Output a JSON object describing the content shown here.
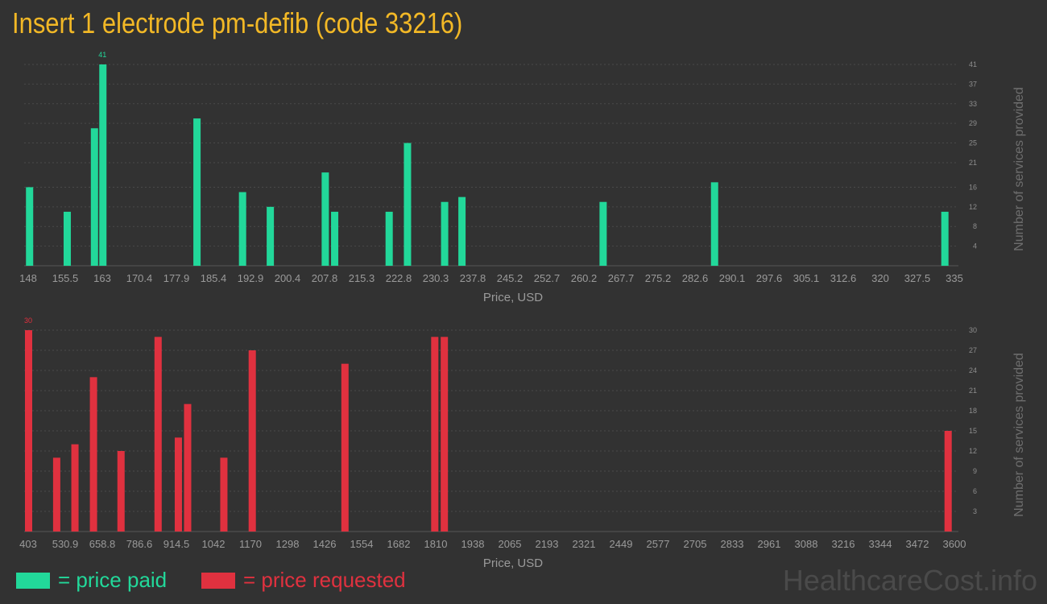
{
  "title": "Insert 1 electrode pm-defib (code 33216)",
  "colors": {
    "paid": "#22d89a",
    "requested": "#e0313f",
    "title": "#f2b826"
  },
  "legend": {
    "paid": "= price paid",
    "requested": "= price requested"
  },
  "brand": "HealthcareCost.info",
  "chart_data": [
    {
      "type": "bar",
      "color": "#22d89a",
      "xlabel": "Price, USD",
      "ylabel": "Number of services provided",
      "x_ticks": [
        "148",
        "155.5",
        "163",
        "170.4",
        "177.9",
        "185.4",
        "192.9",
        "200.4",
        "207.8",
        "215.3",
        "222.8",
        "230.3",
        "237.8",
        "245.2",
        "252.7",
        "260.2",
        "267.7",
        "275.2",
        "282.6",
        "290.1",
        "297.6",
        "305.1",
        "312.6",
        "320",
        "327.5",
        "335"
      ],
      "x_range": [
        148,
        335
      ],
      "y_ticks": [
        4,
        8,
        12,
        16,
        21,
        25,
        29,
        33,
        37,
        41
      ],
      "y_range": [
        0,
        41
      ],
      "max_label": "41",
      "bars": [
        {
          "x": 148.2,
          "y": 16
        },
        {
          "x": 155.8,
          "y": 11
        },
        {
          "x": 161.3,
          "y": 28
        },
        {
          "x": 163.0,
          "y": 41
        },
        {
          "x": 182.0,
          "y": 30
        },
        {
          "x": 191.2,
          "y": 15
        },
        {
          "x": 196.8,
          "y": 12
        },
        {
          "x": 207.9,
          "y": 19
        },
        {
          "x": 209.8,
          "y": 11
        },
        {
          "x": 220.8,
          "y": 11
        },
        {
          "x": 224.5,
          "y": 25
        },
        {
          "x": 232.0,
          "y": 13
        },
        {
          "x": 235.5,
          "y": 14
        },
        {
          "x": 264.0,
          "y": 13
        },
        {
          "x": 286.5,
          "y": 17
        },
        {
          "x": 333.0,
          "y": 11
        }
      ]
    },
    {
      "type": "bar",
      "color": "#e0313f",
      "xlabel": "Price, USD",
      "ylabel": "Number of services provided",
      "x_ticks": [
        "403",
        "530.9",
        "658.8",
        "786.6",
        "914.5",
        "1042",
        "1170",
        "1298",
        "1426",
        "1554",
        "1682",
        "1810",
        "1938",
        "2065",
        "2193",
        "2321",
        "2449",
        "2577",
        "2705",
        "2833",
        "2961",
        "3088",
        "3216",
        "3344",
        "3472",
        "3600"
      ],
      "x_range": [
        403,
        3600
      ],
      "y_ticks": [
        3,
        6,
        9,
        12,
        15,
        18,
        21,
        24,
        27,
        30
      ],
      "y_range": [
        0,
        30
      ],
      "max_label": "30",
      "bars": [
        {
          "x": 403,
          "y": 30
        },
        {
          "x": 500,
          "y": 11
        },
        {
          "x": 563,
          "y": 13
        },
        {
          "x": 627,
          "y": 23
        },
        {
          "x": 722,
          "y": 12
        },
        {
          "x": 850,
          "y": 29
        },
        {
          "x": 920,
          "y": 14
        },
        {
          "x": 952,
          "y": 19
        },
        {
          "x": 1077,
          "y": 11
        },
        {
          "x": 1175,
          "y": 27
        },
        {
          "x": 1495,
          "y": 25
        },
        {
          "x": 1805,
          "y": 29
        },
        {
          "x": 1838,
          "y": 29
        },
        {
          "x": 3577,
          "y": 15
        }
      ]
    }
  ]
}
